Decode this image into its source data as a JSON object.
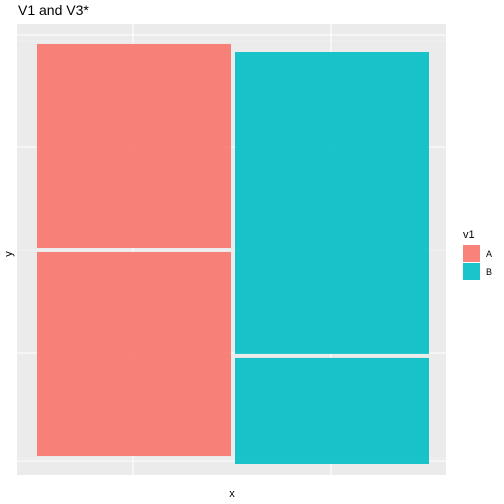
{
  "chart_data": {
    "type": "mosaic",
    "title": "V1 and V3*",
    "xlabel": "x",
    "ylabel": "y",
    "grid": true,
    "legend": {
      "title": "v1",
      "placement": "right",
      "entries": [
        {
          "label": "A",
          "color": "#F8766D"
        },
        {
          "label": "B",
          "color": "#00BFC4"
        }
      ]
    },
    "columns": [
      {
        "fill": "A",
        "color": "#F8766D",
        "width_share": 0.5,
        "segments": [
          {
            "share": 0.5
          },
          {
            "share": 0.5
          }
        ]
      },
      {
        "fill": "B",
        "color": "#00BFC4",
        "width_share": 0.5,
        "segments": [
          {
            "share": 0.74
          },
          {
            "share": 0.26
          }
        ]
      }
    ]
  }
}
